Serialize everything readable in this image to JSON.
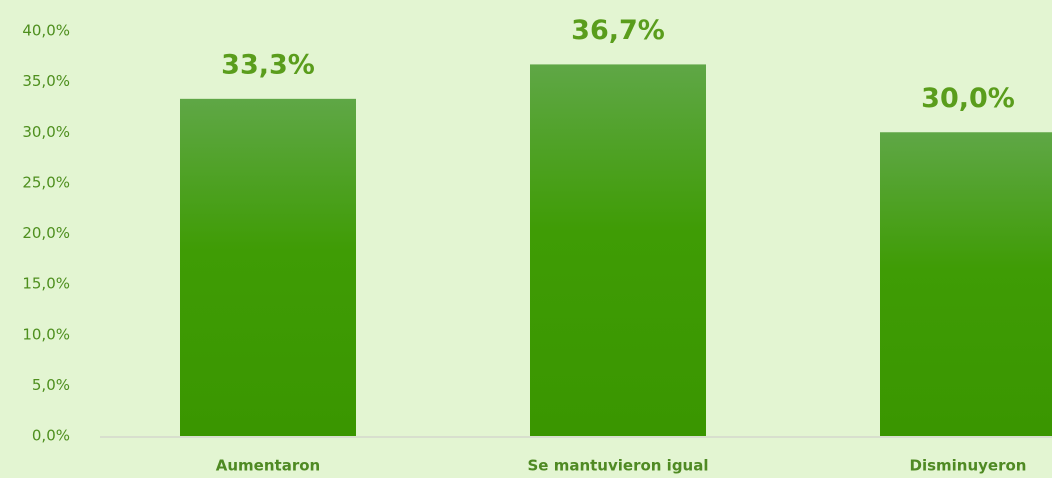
{
  "chart_data": {
    "type": "bar",
    "categories": [
      "Aumentaron",
      "Se mantuvieron igual",
      "Disminuyeron"
    ],
    "values": [
      33.3,
      36.7,
      30
    ],
    "value_labels": [
      "33,3%",
      "36,7%",
      "30,0%"
    ],
    "color": "#3f9c08",
    "ylim": [
      0,
      40
    ],
    "yticks": [
      {
        "value": 0,
        "label": "0,0%"
      },
      {
        "value": 5,
        "label": "5,0%"
      },
      {
        "value": 10,
        "label": "10,0%"
      },
      {
        "value": 15,
        "label": "15,0%"
      },
      {
        "value": 20,
        "label": "20,0%"
      },
      {
        "value": 25,
        "label": "25,0%"
      },
      {
        "value": 30,
        "label": "30,0%"
      },
      {
        "value": 35,
        "label": "35,0%"
      },
      {
        "value": 40,
        "label": "40,0%"
      }
    ],
    "grid": false
  }
}
